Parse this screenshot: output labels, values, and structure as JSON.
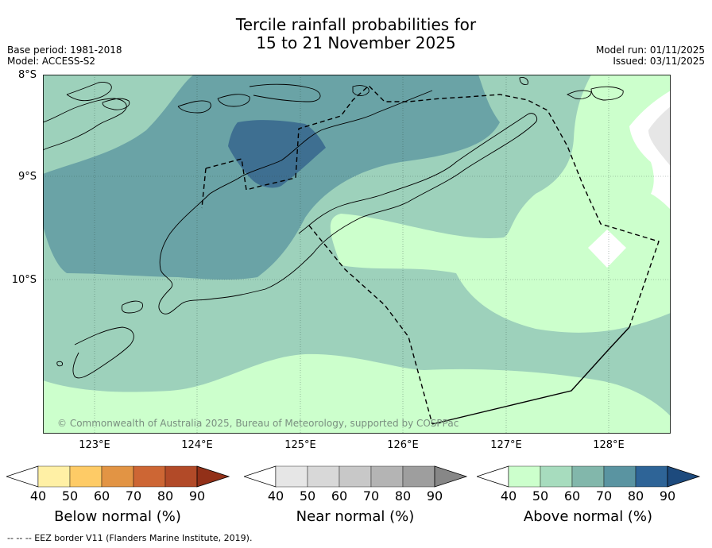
{
  "title_line1": "Tercile rainfall probabilities for",
  "title_line2": "15 to 21 November 2025",
  "base_period": "Base period: 1981-2018",
  "model": "Model: ACCESS-S2",
  "model_run": "Model run: 01/11/2025",
  "issued": "Issued: 03/11/2025",
  "map": {
    "lat_labels": [
      "8°S",
      "9°S",
      "10°S"
    ],
    "lon_labels": [
      "123°E",
      "124°E",
      "125°E",
      "126°E",
      "127°E",
      "128°E"
    ],
    "copyright": "© Commonwealth of Australia 2025, Bureau of Meteorology, supported by COSPPac",
    "categories": {
      "above_50": "#9dd1bb",
      "above_60": "#6aa3a6",
      "above_70": "#3e6f91",
      "above_40": "#ccffcc",
      "near_40": "#e6e6e6"
    }
  },
  "colorbars": [
    {
      "title": "Below normal (%)",
      "ticks": [
        "40",
        "50",
        "60",
        "70",
        "80",
        "90"
      ],
      "colors": [
        "#fff0a5",
        "#fecb66",
        "#e29444",
        "#cd6634",
        "#b24a28",
        "#923018"
      ]
    },
    {
      "title": "Near normal (%)",
      "ticks": [
        "40",
        "50",
        "60",
        "70",
        "80",
        "90"
      ],
      "colors": [
        "#e6e6e6",
        "#d8d8d8",
        "#c8c8c8",
        "#b4b4b4",
        "#9e9e9e",
        "#878787"
      ]
    },
    {
      "title": "Above normal (%)",
      "ticks": [
        "40",
        "50",
        "60",
        "70",
        "80",
        "90"
      ],
      "colors": [
        "#ccffcc",
        "#a7dcbe",
        "#82b7ab",
        "#5a94a1",
        "#2e6497",
        "#1d4a7d"
      ]
    }
  ],
  "footnote": "-- -- -- EEZ border V11 (Flanders Marine Institute, 2019)."
}
